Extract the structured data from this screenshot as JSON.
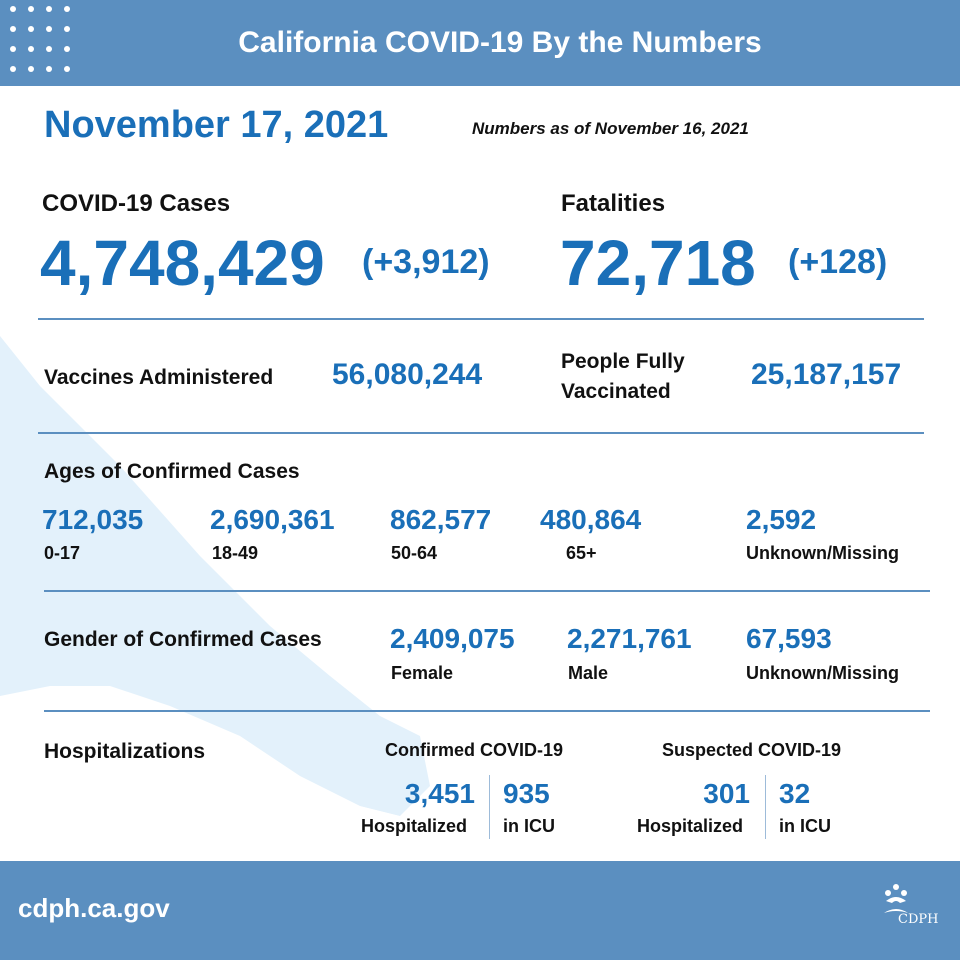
{
  "header": {
    "title": "California COVID-19 By the Numbers"
  },
  "date": "November 17, 2021",
  "as_of": "Numbers as of November 16, 2021",
  "cases": {
    "label": "COVID-19 Cases",
    "value": "4,748,429",
    "delta": "(+3,912)"
  },
  "fatalities": {
    "label": "Fatalities",
    "value": "72,718",
    "delta": "(+128)"
  },
  "vaccines": {
    "label": "Vaccines Administered",
    "value": "56,080,244"
  },
  "fully_vaccinated": {
    "label_line1": "People Fully",
    "label_line2": "Vaccinated",
    "value": "25,187,157"
  },
  "ages": {
    "title": "Ages of Confirmed Cases",
    "items": [
      {
        "value": "712,035",
        "label": "0-17"
      },
      {
        "value": "2,690,361",
        "label": "18-49"
      },
      {
        "value": "862,577",
        "label": "50-64"
      },
      {
        "value": "480,864",
        "label": "65+"
      },
      {
        "value": "2,592",
        "label": "Unknown/Missing"
      }
    ]
  },
  "gender": {
    "title": "Gender of Confirmed Cases",
    "items": [
      {
        "value": "2,409,075",
        "label": "Female"
      },
      {
        "value": "2,271,761",
        "label": "Male"
      },
      {
        "value": "67,593",
        "label": "Unknown/Missing"
      }
    ]
  },
  "hospitalizations": {
    "title": "Hospitalizations",
    "confirmed": {
      "title": "Confirmed COVID-19",
      "hosp_value": "3,451",
      "hosp_label": "Hospitalized",
      "icu_value": "935",
      "icu_label": "in ICU"
    },
    "suspected": {
      "title": "Suspected COVID-19",
      "hosp_value": "301",
      "hosp_label": "Hospitalized",
      "icu_value": "32",
      "icu_label": "in ICU"
    }
  },
  "footer": {
    "url": "cdph.ca.gov",
    "logo_text": "CDPH"
  },
  "colors": {
    "accent": "#1a6fb8",
    "band": "#5b8fc0",
    "map": "#e3f1fb"
  }
}
